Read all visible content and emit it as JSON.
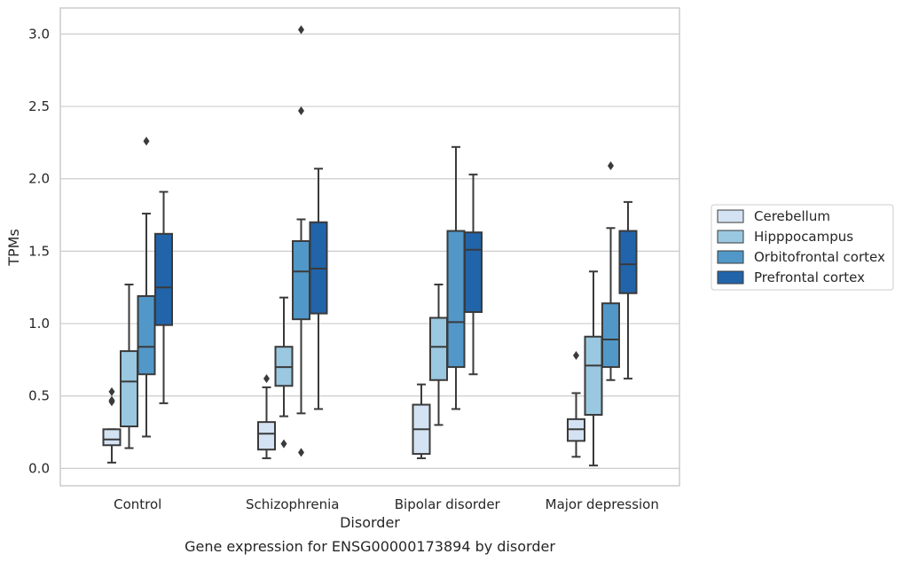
{
  "caption": "Gene expression for ENSG00000173894 by disorder",
  "chart_data": {
    "type": "box",
    "xlabel": "Disorder",
    "ylabel": "TPMs",
    "ylim": [
      -0.12,
      3.18
    ],
    "yticks": [
      "0.0",
      "0.5",
      "1.0",
      "1.5",
      "2.0",
      "2.5",
      "3.0"
    ],
    "grid": "horizontal",
    "legend_position": "right",
    "categories": [
      "Control",
      "Schizophrenia",
      "Bipolar disorder",
      "Major depression"
    ],
    "series": [
      {
        "name": "Cerebellum",
        "color": "#d4e3f3",
        "boxes": [
          {
            "whislo": 0.04,
            "q1": 0.16,
            "med": 0.2,
            "q3": 0.27,
            "whishi": 0.27,
            "fliers": [
              0.46,
              0.47,
              0.53
            ]
          },
          {
            "whislo": 0.07,
            "q1": 0.13,
            "med": 0.24,
            "q3": 0.32,
            "whishi": 0.56,
            "fliers": [
              0.62
            ]
          },
          {
            "whislo": 0.07,
            "q1": 0.1,
            "med": 0.27,
            "q3": 0.44,
            "whishi": 0.58,
            "fliers": []
          },
          {
            "whislo": 0.08,
            "q1": 0.19,
            "med": 0.27,
            "q3": 0.34,
            "whishi": 0.52,
            "fliers": [
              0.78
            ]
          }
        ]
      },
      {
        "name": "Hipppocampus",
        "color": "#9ac8e0",
        "boxes": [
          {
            "whislo": 0.14,
            "q1": 0.29,
            "med": 0.6,
            "q3": 0.81,
            "whishi": 1.27,
            "fliers": []
          },
          {
            "whislo": 0.36,
            "q1": 0.57,
            "med": 0.7,
            "q3": 0.84,
            "whishi": 1.18,
            "fliers": [
              0.17
            ]
          },
          {
            "whislo": 0.3,
            "q1": 0.61,
            "med": 0.84,
            "q3": 1.04,
            "whishi": 1.27,
            "fliers": []
          },
          {
            "whislo": 0.02,
            "q1": 0.37,
            "med": 0.71,
            "q3": 0.91,
            "whishi": 1.36,
            "fliers": []
          }
        ]
      },
      {
        "name": "Orbitofrontal cortex",
        "color": "#5198c8",
        "boxes": [
          {
            "whislo": 0.22,
            "q1": 0.65,
            "med": 0.84,
            "q3": 1.19,
            "whishi": 1.76,
            "fliers": [
              2.26
            ]
          },
          {
            "whislo": 0.38,
            "q1": 1.03,
            "med": 1.36,
            "q3": 1.57,
            "whishi": 1.72,
            "fliers": [
              0.11,
              2.47,
              3.03
            ]
          },
          {
            "whislo": 0.41,
            "q1": 0.7,
            "med": 1.01,
            "q3": 1.64,
            "whishi": 2.22,
            "fliers": []
          },
          {
            "whislo": 0.61,
            "q1": 0.7,
            "med": 0.89,
            "q3": 1.14,
            "whishi": 1.66,
            "fliers": [
              2.09
            ]
          }
        ]
      },
      {
        "name": "Prefrontal cortex",
        "color": "#2264a9",
        "boxes": [
          {
            "whislo": 0.45,
            "q1": 0.99,
            "med": 1.25,
            "q3": 1.62,
            "whishi": 1.91,
            "fliers": []
          },
          {
            "whislo": 0.41,
            "q1": 1.07,
            "med": 1.38,
            "q3": 1.7,
            "whishi": 2.07,
            "fliers": []
          },
          {
            "whislo": 0.65,
            "q1": 1.08,
            "med": 1.51,
            "q3": 1.63,
            "whishi": 2.03,
            "fliers": []
          },
          {
            "whislo": 0.62,
            "q1": 1.21,
            "med": 1.41,
            "q3": 1.64,
            "whishi": 1.84,
            "fliers": []
          }
        ]
      }
    ]
  }
}
